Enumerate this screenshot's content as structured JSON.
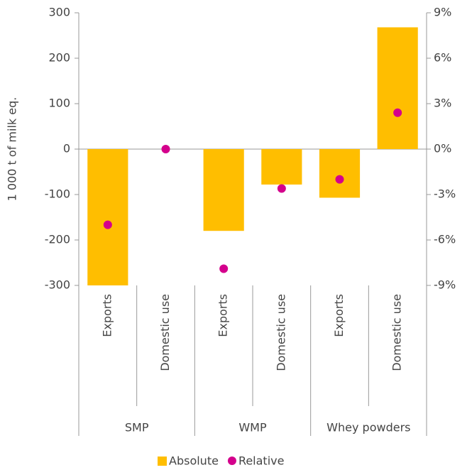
{
  "chart_data": {
    "type": "bar-dot",
    "y_label": "1 000 t of milk eq.",
    "categories": [
      "Exports",
      "Domestic use",
      "Exports",
      "Domestic use",
      "Exports",
      "Domestic use"
    ],
    "groups": [
      "SMP",
      "WMP",
      "Whey powders"
    ],
    "series": [
      {
        "name": "Absolute",
        "color": "#ffbe00",
        "values": [
          -300,
          0,
          -180,
          -78,
          -107,
          268
        ]
      },
      {
        "name": "Relative",
        "color": "#d4008c",
        "axis": "y2",
        "values": [
          -5,
          0,
          -7.9,
          -2.6,
          -2,
          2.4
        ]
      }
    ],
    "ylim": [
      -300,
      300
    ],
    "yticks": [
      -300,
      -200,
      -100,
      0,
      100,
      200,
      300
    ],
    "y2lim": [
      -9,
      9
    ],
    "y2ticks": [
      {
        "value": -9,
        "label": "-9%"
      },
      {
        "value": -6,
        "label": "-6%"
      },
      {
        "value": -3,
        "label": "-3%"
      },
      {
        "value": 0,
        "label": "0%"
      },
      {
        "value": 3,
        "label": "3%"
      },
      {
        "value": 6,
        "label": "6%"
      },
      {
        "value": 9,
        "label": "9%"
      }
    ],
    "legend": "bottom"
  }
}
